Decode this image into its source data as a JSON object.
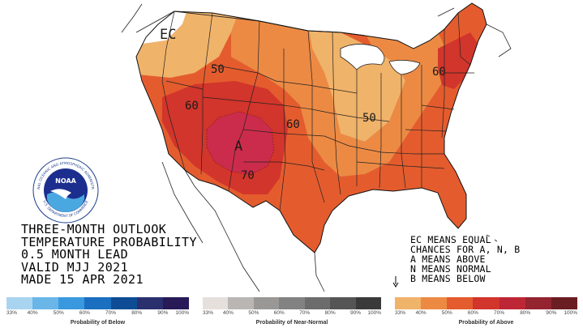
{
  "title_block": {
    "line1": "THREE-MONTH OUTLOOK",
    "line2": "TEMPERATURE PROBABILITY",
    "line3": "0.5 MONTH LEAD",
    "line4": "VALID MJJ 2021",
    "line5": "MADE 15 APR 2021"
  },
  "legend_text": {
    "line1": "EC MEANS EQUAL",
    "line2": "CHANCES FOR A, N, B",
    "line3": "A MEANS ABOVE",
    "line4": "N MEANS NORMAL",
    "line5": "B MEANS BELOW"
  },
  "map_labels": {
    "ec": "EC",
    "a": "A",
    "c50_nw": "50",
    "c50_central": "50",
    "c60_west": "60",
    "c60_central": "60",
    "c60_east": "60",
    "c70": "70"
  },
  "logo": {
    "text": "NOAA",
    "ring_top": "NATIONAL OCEANIC AND ATMOSPHERIC ADMINISTRATION",
    "ring_bottom": "U.S. DEPARTMENT OF COMMERCE"
  },
  "scales": [
    {
      "title": "Probability of Below",
      "labels": [
        "33%",
        "40%",
        "50%",
        "60%",
        "70%",
        "80%",
        "90%",
        "100%"
      ],
      "colors": [
        "#a9d4f0",
        "#6bb6e8",
        "#3a99de",
        "#1a6fc0",
        "#0e4d96",
        "#2a2f6e",
        "#271a57"
      ]
    },
    {
      "title": "Probability of Near-Normal",
      "labels": [
        "33%",
        "40%",
        "50%",
        "60%",
        "70%",
        "80%",
        "90%",
        "100%"
      ],
      "colors": [
        "#e6e0dc",
        "#b9b6b4",
        "#999897",
        "#828282",
        "#6c6c6c",
        "#555555",
        "#3a3a3a"
      ]
    },
    {
      "title": "Probability of Above",
      "labels": [
        "33%",
        "40%",
        "50%",
        "60%",
        "70%",
        "80%",
        "90%",
        "100%"
      ],
      "colors": [
        "#f0b36a",
        "#ec8a44",
        "#e45c2e",
        "#d2352b",
        "#bd2634",
        "#932430",
        "#6a1d22"
      ]
    }
  ],
  "category_colors": {
    "ec": "#ffffff",
    "a33": "#f0b36a",
    "a40": "#ec8a44",
    "a50": "#e45c2e",
    "a60": "#d2352b",
    "a70": "#cc2c4b"
  }
}
